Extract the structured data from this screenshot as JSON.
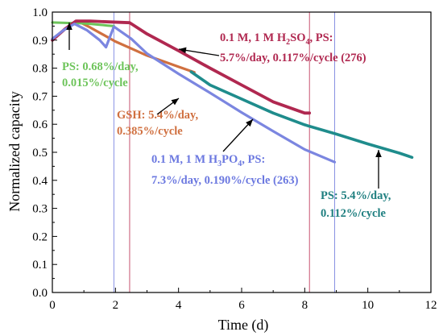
{
  "chart_data": {
    "type": "line",
    "xlabel": "Time (d)",
    "ylabel": "Normalized capacity",
    "xlim": [
      0,
      12
    ],
    "ylim": [
      0.0,
      1.0
    ],
    "xticks": [
      "0",
      "2",
      "4",
      "6",
      "8",
      "10",
      "12"
    ],
    "yticks": [
      "0.0",
      "0.1",
      "0.2",
      "0.3",
      "0.4",
      "0.5",
      "0.6",
      "0.7",
      "0.8",
      "0.9",
      "1.0"
    ],
    "grid": false,
    "reference_lines": [
      {
        "x": 1.95,
        "color": "#7b86e0"
      },
      {
        "x": 2.45,
        "color": "#c04060"
      },
      {
        "x": 8.15,
        "color": "#c04060"
      },
      {
        "x": 8.95,
        "color": "#7b86e0"
      }
    ],
    "series": [
      {
        "color": "#6dc45a",
        "points": [
          [
            0.0,
            0.963
          ],
          [
            0.3,
            0.962
          ],
          [
            0.6,
            0.961
          ],
          [
            0.9,
            0.96
          ],
          [
            1.2,
            0.958
          ],
          [
            1.5,
            0.955
          ],
          [
            1.75,
            0.952
          ],
          [
            1.95,
            0.95
          ]
        ]
      },
      {
        "color": "#d07040",
        "points": [
          [
            0.8,
            0.968
          ],
          [
            1.2,
            0.945
          ],
          [
            1.6,
            0.92
          ],
          [
            2.0,
            0.895
          ],
          [
            2.5,
            0.87
          ],
          [
            3.0,
            0.845
          ],
          [
            3.5,
            0.825
          ],
          [
            4.0,
            0.805
          ],
          [
            4.5,
            0.785
          ]
        ]
      },
      {
        "color": "#b02850",
        "points": [
          [
            0.0,
            0.9
          ],
          [
            0.4,
            0.94
          ],
          [
            0.75,
            0.968
          ],
          [
            1.2,
            0.968
          ],
          [
            1.8,
            0.965
          ],
          [
            2.45,
            0.962
          ],
          [
            3.0,
            0.922
          ],
          [
            4.0,
            0.862
          ],
          [
            5.0,
            0.8
          ],
          [
            6.0,
            0.74
          ],
          [
            7.0,
            0.68
          ],
          [
            8.0,
            0.64
          ],
          [
            8.15,
            0.64
          ]
        ]
      },
      {
        "color": "#7b86e0",
        "points": [
          [
            0.0,
            0.905
          ],
          [
            0.35,
            0.935
          ],
          [
            0.7,
            0.958
          ],
          [
            1.1,
            0.935
          ],
          [
            1.5,
            0.9
          ],
          [
            1.7,
            0.875
          ],
          [
            1.95,
            0.948
          ],
          [
            2.5,
            0.905
          ],
          [
            3.0,
            0.852
          ],
          [
            4.0,
            0.78
          ],
          [
            5.0,
            0.712
          ],
          [
            6.0,
            0.642
          ],
          [
            7.0,
            0.575
          ],
          [
            8.0,
            0.51
          ],
          [
            8.95,
            0.465
          ]
        ]
      },
      {
        "color": "#1f8c8c",
        "points": [
          [
            4.4,
            0.787
          ],
          [
            5.0,
            0.74
          ],
          [
            6.0,
            0.69
          ],
          [
            7.0,
            0.64
          ],
          [
            8.0,
            0.598
          ],
          [
            9.0,
            0.565
          ],
          [
            10.0,
            0.53
          ],
          [
            11.0,
            0.497
          ],
          [
            11.4,
            0.482
          ]
        ]
      }
    ],
    "annotations": [
      {
        "lines": [
          [
            {
              "t": "0.1 M, 1 M H"
            },
            {
              "t": "2",
              "sub": true
            },
            {
              "t": "SO"
            },
            {
              "t": "4",
              "sub": true
            },
            {
              "t": ", PS:"
            }
          ],
          [
            {
              "t": "5.7%/day, 0.117%/cycle (276)"
            }
          ]
        ],
        "color": "#b02850"
      },
      {
        "lines": [
          [
            {
              "t": "PS: 0.68%/day,"
            }
          ],
          [
            {
              "t": "0.015%/cycle"
            }
          ]
        ],
        "color": "#6dc45a"
      },
      {
        "lines": [
          [
            {
              "t": "GSH: 5.4%/day,"
            }
          ],
          [
            {
              "t": "0.385%/cycle"
            }
          ]
        ],
        "color": "#d07040"
      },
      {
        "lines": [
          [
            {
              "t": "0.1 M, 1 M H"
            },
            {
              "t": "3",
              "sub": true
            },
            {
              "t": "PO"
            },
            {
              "t": "4",
              "sub": true
            },
            {
              "t": ", PS:"
            }
          ],
          [
            {
              "t": "7.3%/day, 0.190%/cycle (263)"
            }
          ]
        ],
        "color": "#6b78e0"
      },
      {
        "lines": [
          [
            {
              "t": "PS: 5.4%/day,"
            }
          ],
          [
            {
              "t": "0.112%/cycle"
            }
          ]
        ],
        "color": "#1f7f80"
      }
    ]
  }
}
